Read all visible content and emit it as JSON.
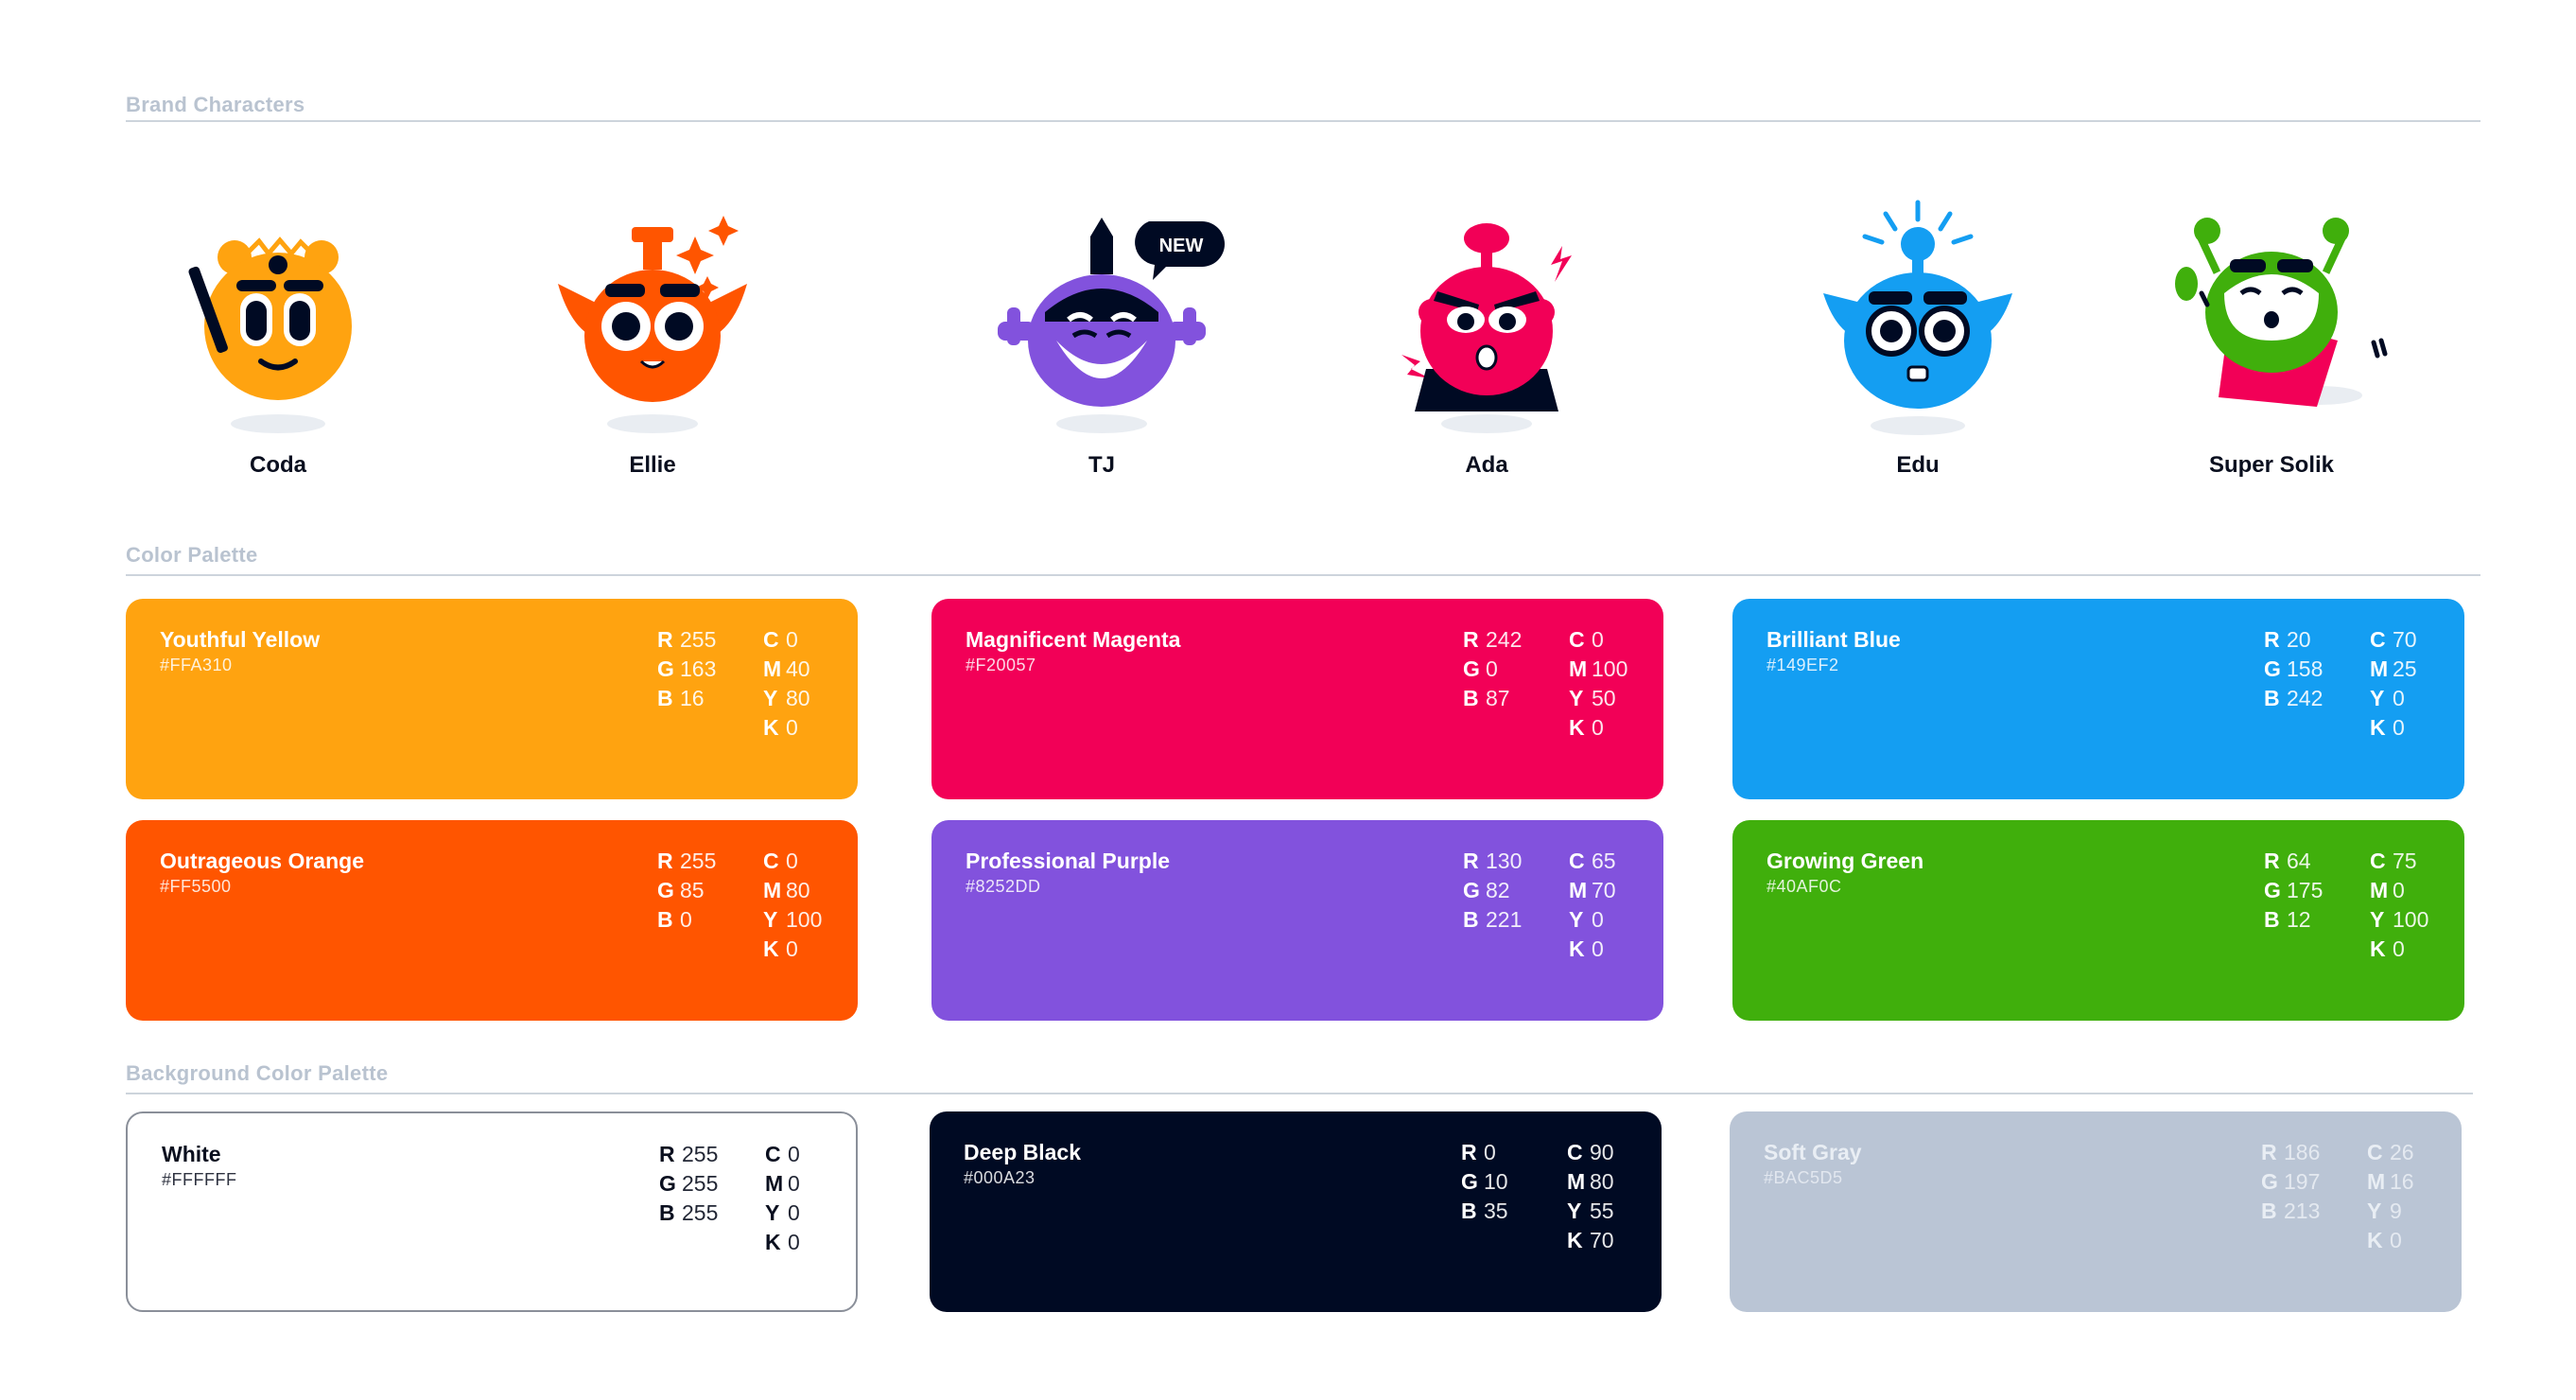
{
  "sections": {
    "characters": "Brand Characters",
    "palette": "Color Palette",
    "background": "Background Color Palette"
  },
  "characters": [
    {
      "name": "Coda",
      "color": "#FFA310"
    },
    {
      "name": "Ellie",
      "color": "#FF5500"
    },
    {
      "name": "TJ",
      "color": "#8252DD",
      "badge": "NEW"
    },
    {
      "name": "Ada",
      "color": "#F20057"
    },
    {
      "name": "Edu",
      "color": "#149EF2"
    },
    {
      "name": "Super Solik",
      "color": "#40AF0C"
    }
  ],
  "palette": [
    {
      "name": "Youthful Yellow",
      "hex": "#FFA310",
      "color": "#FFA310",
      "r": "255",
      "g": "163",
      "b": "16",
      "c": "0",
      "m": "40",
      "y": "80",
      "k": "0"
    },
    {
      "name": "Magnificent Magenta",
      "hex": "#F20057",
      "color": "#F20057",
      "r": "242",
      "g": "0",
      "b": "87",
      "c": "0",
      "m": "100",
      "y": "50",
      "k": "0"
    },
    {
      "name": "Brilliant Blue",
      "hex": "#149EF2",
      "color": "#149EF2",
      "r": "20",
      "g": "158",
      "b": "242",
      "c": "70",
      "m": "25",
      "y": "0",
      "k": "0"
    },
    {
      "name": "Outrageous Orange",
      "hex": "#FF5500",
      "color": "#FF5500",
      "r": "255",
      "g": "85",
      "b": "0",
      "c": "0",
      "m": "80",
      "y": "100",
      "k": "0"
    },
    {
      "name": "Professional Purple",
      "hex": "#8252DD",
      "color": "#8252DD",
      "r": "130",
      "g": "82",
      "b": "221",
      "c": "65",
      "m": "70",
      "y": "0",
      "k": "0"
    },
    {
      "name": "Growing Green",
      "hex": "#40AF0C",
      "color": "#40AF0C",
      "r": "64",
      "g": "175",
      "b": "12",
      "c": "75",
      "m": "0",
      "y": "100",
      "k": "0"
    }
  ],
  "background": [
    {
      "name": "White",
      "hex": "#FFFFFF",
      "color": "#FFFFFF",
      "r": "255",
      "g": "255",
      "b": "255",
      "c": "0",
      "m": "0",
      "y": "0",
      "k": "0"
    },
    {
      "name": "Deep Black",
      "hex": "#000A23",
      "color": "#000A23",
      "r": "0",
      "g": "10",
      "b": "35",
      "c": "90",
      "m": "80",
      "y": "55",
      "k": "70"
    },
    {
      "name": "Soft Gray",
      "hex": "#BAC5D5",
      "color": "#BAC5D5",
      "r": "186",
      "g": "197",
      "b": "213",
      "c": "26",
      "m": "16",
      "y": "9",
      "k": "0"
    }
  ],
  "labels": {
    "r": "R",
    "g": "G",
    "b": "B",
    "c": "C",
    "m": "M",
    "y": "Y",
    "k": "K"
  }
}
